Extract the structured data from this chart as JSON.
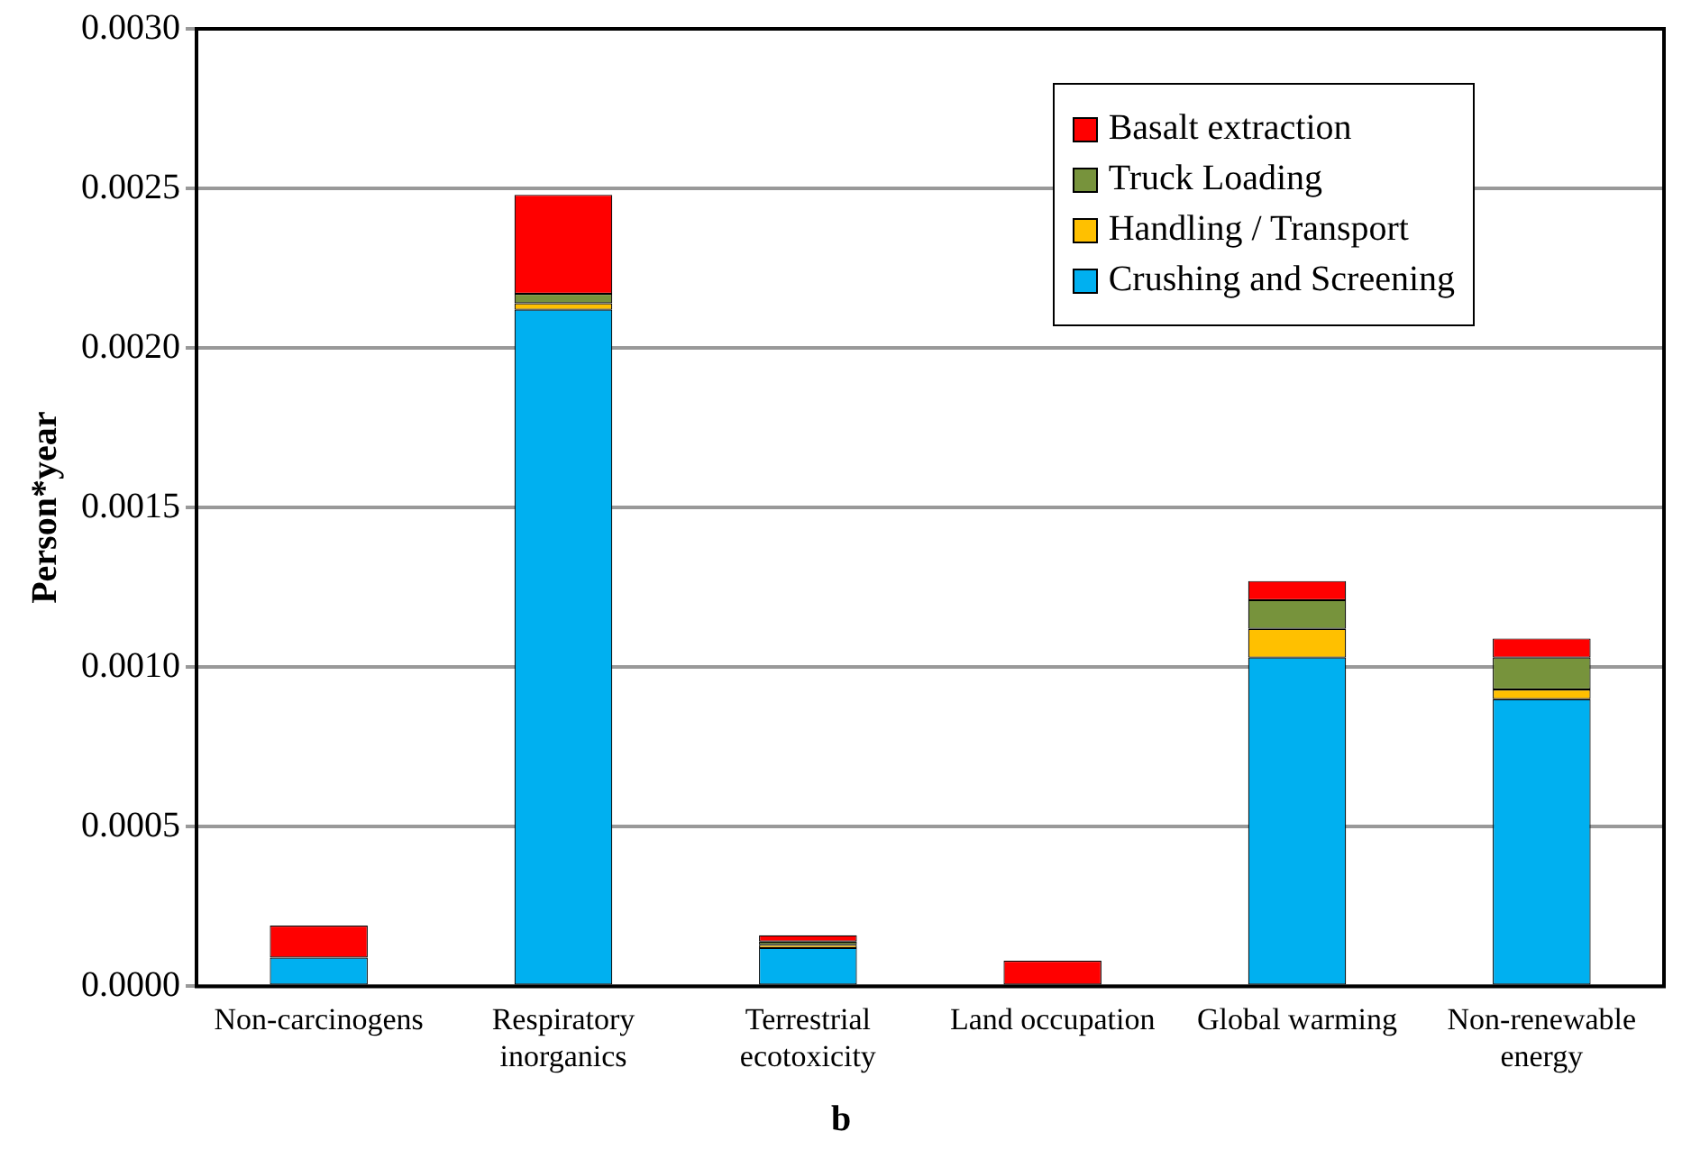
{
  "chart_data": {
    "type": "bar",
    "stacked": true,
    "ylabel": "Person*year",
    "categories": [
      "Non-carcinogens",
      "Respiratory inorganics",
      "Terrestrial ecotoxicity",
      "Land occupation",
      "Global warming",
      "Non-renewable energy"
    ],
    "series": [
      {
        "name": "Crushing and Screening",
        "color": "#00b0f0",
        "values": [
          9e-05,
          0.00212,
          0.00012,
          0,
          0.00103,
          0.0009
        ]
      },
      {
        "name": "Handling / Transport",
        "color": "#ffc000",
        "values": [
          0,
          2e-05,
          1e-05,
          0,
          9e-05,
          3e-05
        ]
      },
      {
        "name": "Truck Loading",
        "color": "#77933c",
        "values": [
          0,
          3e-05,
          1e-05,
          0,
          9e-05,
          0.0001
        ]
      },
      {
        "name": "Basalt extraction",
        "color": "#ff0000",
        "values": [
          0.0001,
          0.00031,
          2e-05,
          8e-05,
          6e-05,
          6e-05
        ]
      }
    ],
    "ylim": [
      0,
      0.003
    ],
    "yticks": [
      {
        "value": 0,
        "label": "0.0000"
      },
      {
        "value": 0.0005,
        "label": "0.0005"
      },
      {
        "value": 0.001,
        "label": "0.0010"
      },
      {
        "value": 0.0015,
        "label": "0.0015"
      },
      {
        "value": 0.002,
        "label": "0.0020"
      },
      {
        "value": 0.0025,
        "label": "0.0025"
      },
      {
        "value": 0.003,
        "label": "0.0030"
      }
    ],
    "grid": "y",
    "legend": "top right",
    "annotations": [
      "b"
    ]
  }
}
